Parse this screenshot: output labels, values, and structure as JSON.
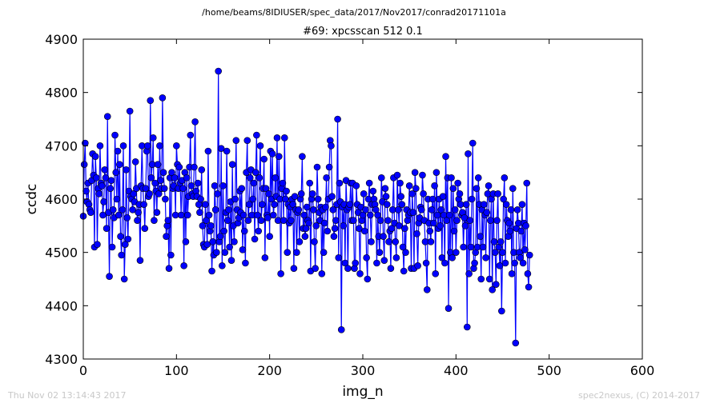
{
  "header": {
    "path": "/home/beams/8IDIUSER/spec_data/2017/Nov2017/conrad20171101a"
  },
  "footer": {
    "timestamp": "Thu Nov 02 13:14:43 2017",
    "credit": "spec2nexus, (C) 2014-2017"
  },
  "colors": {
    "series": "#0000ff",
    "marker_edge": "#000000"
  },
  "chart_data": {
    "type": "line",
    "title": "#69: xpcsscan 512 0.1",
    "xlabel": "img_n",
    "ylabel": "ccdc",
    "xlim": [
      0,
      600
    ],
    "ylim": [
      4300,
      4900
    ],
    "xticks": [
      0,
      100,
      200,
      300,
      400,
      500,
      600
    ],
    "yticks": [
      4300,
      4400,
      4500,
      4600,
      4700,
      4800,
      4900
    ],
    "grid": false,
    "legend": "none",
    "series": [
      {
        "marker": "circle",
        "x_start": 0,
        "x_step": 1,
        "values": [
          4568,
          4665,
          4705,
          4615,
          4595,
          4630,
          4590,
          4580,
          4575,
          4635,
          4685,
          4645,
          4510,
          4680,
          4640,
          4515,
          4620,
          4610,
          4700,
          4630,
          4625,
          4570,
          4595,
          4655,
          4640,
          4545,
          4755,
          4575,
          4455,
          4620,
          4635,
          4510,
          4580,
          4565,
          4720,
          4650,
          4600,
          4690,
          4570,
          4665,
          4530,
          4495,
          4580,
          4700,
          4450,
          4515,
          4655,
          4565,
          4525,
          4615,
          4765,
          4605,
          4600,
          4580,
          4610,
          4595,
          4670,
          4620,
          4560,
          4575,
          4590,
          4485,
          4625,
          4700,
          4620,
          4590,
          4545,
          4620,
          4690,
          4700,
          4605,
          4610,
          4785,
          4640,
          4665,
          4715,
          4560,
          4630,
          4615,
          4575,
          4665,
          4610,
          4700,
          4635,
          4620,
          4790,
          4650,
          4620,
          4600,
          4530,
          4550,
          4560,
          4470,
          4640,
          4495,
          4650,
          4620,
          4625,
          4640,
          4570,
          4700,
          4665,
          4620,
          4660,
          4630,
          4570,
          4635,
          4620,
          4475,
          4650,
          4520,
          4640,
          4570,
          4605,
          4660,
          4720,
          4625,
          4610,
          4605,
          4660,
          4745,
          4615,
          4605,
          4630,
          4590,
          4575,
          4600,
          4655,
          4550,
          4515,
          4510,
          4590,
          4560,
          4515,
          4690,
          4570,
          4540,
          4550,
          4465,
          4520,
          4495,
          4625,
          4580,
          4500,
          4610,
          4840,
          4520,
          4530,
          4695,
          4475,
          4625,
          4540,
          4500,
          4575,
          4690,
          4560,
          4580,
          4510,
          4595,
          4485,
          4665,
          4550,
          4520,
          4600,
          4710,
          4580,
          4555,
          4565,
          4615,
          4575,
          4620,
          4505,
          4570,
          4540,
          4480,
          4650,
          4710,
          4560,
          4590,
          4640,
          4655,
          4570,
          4600,
          4630,
          4525,
          4650,
          4720,
          4570,
          4540,
          4640,
          4700,
          4560,
          4590,
          4620,
          4675,
          4490,
          4620,
          4570,
          4565,
          4610,
          4530,
          4690,
          4600,
          4685,
          4570,
          4590,
          4640,
          4605,
          4715,
          4560,
          4680,
          4600,
          4460,
          4620,
          4630,
          4560,
          4715,
          4600,
          4615,
          4500,
          4590,
          4555,
          4585,
          4560,
          4600,
          4590,
          4470,
          4605,
          4580,
          4500,
          4575,
          4580,
          4520,
          4600,
          4610,
          4680,
          4545,
          4570,
          4530,
          4545,
          4585,
          4560,
          4555,
          4630,
          4465,
          4600,
          4610,
          4580,
          4520,
          4470,
          4550,
          4660,
          4600,
          4575,
          4560,
          4585,
          4460,
          4580,
          4500,
          4555,
          4585,
          4640,
          4540,
          4600,
          4660,
          4710,
          4700,
          4605,
          4580,
          4530,
          4545,
          4560,
          4590,
          4750,
          4490,
          4630,
          4595,
          4355,
          4585,
          4550,
          4590,
          4480,
          4635,
          4580,
          4470,
          4585,
          4590,
          4630,
          4560,
          4630,
          4560,
          4470,
          4480,
          4625,
          4590,
          4575,
          4545,
          4460,
          4585,
          4560,
          4570,
          4610,
          4540,
          4580,
          4490,
          4450,
          4600,
          4630,
          4570,
          4520,
          4590,
          4615,
          4600,
          4590,
          4580,
          4480,
          4570,
          4530,
          4500,
          4560,
          4640,
          4595,
          4530,
          4485,
          4620,
          4605,
          4590,
          4560,
          4520,
          4540,
          4470,
          4545,
          4580,
          4640,
          4555,
          4520,
          4490,
          4645,
          4580,
          4550,
          4630,
          4605,
          4590,
          4510,
          4465,
          4545,
          4500,
          4580,
          4560,
          4570,
          4625,
          4575,
          4470,
          4610,
          4575,
          4470,
          4650,
          4620,
          4535,
          4475,
          4555,
          4565,
          4585,
          4580,
          4645,
          4610,
          4560,
          4520,
          4480,
          4430,
          4600,
          4555,
          4540,
          4520,
          4580,
          4600,
          4555,
          4625,
          4460,
          4650,
          4570,
          4545,
          4600,
          4550,
          4580,
          4490,
          4605,
          4570,
          4480,
          4680,
          4560,
          4640,
          4395,
          4570,
          4500,
          4640,
          4490,
          4620,
          4540,
          4580,
          4500,
          4560,
          4630,
          4600,
          4610,
          4590,
          4570,
          4575,
          4510,
          4565,
          4550,
          4590,
          4360,
          4685,
          4460,
          4560,
          4510,
          4600,
          4705,
          4470,
          4480,
          4500,
          4620,
          4510,
          4640,
          4590,
          4530,
          4450,
          4580,
          4510,
          4590,
          4570,
          4490,
          4575,
          4610,
          4625,
          4450,
          4560,
          4600,
          4430,
          4610,
          4520,
          4500,
          4440,
          4560,
          4610,
          4510,
          4475,
          4520,
          4390,
          4500,
          4600,
          4640,
          4480,
          4590,
          4560,
          4530,
          4555,
          4540,
          4580,
          4460,
          4620,
          4500,
          4480,
          4330,
          4545,
          4580,
          4555,
          4500,
          4490,
          4540,
          4590,
          4480,
          4555,
          4505,
          4550,
          4630,
          4460,
          4435,
          4495
        ]
      }
    ]
  }
}
